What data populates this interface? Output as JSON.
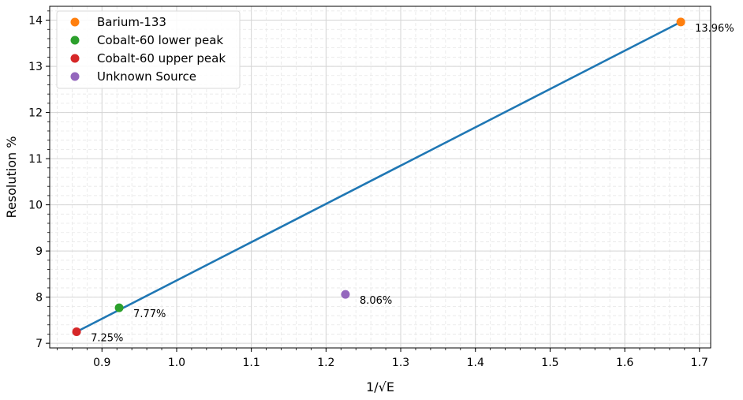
{
  "chart_data": {
    "type": "scatter",
    "xlabel": "1/√E",
    "ylabel": "Resolution %",
    "xlim": [
      0.83,
      1.715
    ],
    "ylim": [
      6.9,
      14.3
    ],
    "x_ticks": [
      0.9,
      1.0,
      1.1,
      1.2,
      1.3,
      1.4,
      1.5,
      1.6,
      1.7
    ],
    "x_tick_labels": [
      "0.9",
      "1.0",
      "1.1",
      "1.2",
      "1.3",
      "1.4",
      "1.5",
      "1.6",
      "1.7"
    ],
    "y_ticks": [
      7,
      8,
      9,
      10,
      11,
      12,
      13,
      14
    ],
    "y_tick_labels": [
      "7",
      "8",
      "9",
      "10",
      "11",
      "12",
      "13",
      "14"
    ],
    "grid": true,
    "minor_grid": true,
    "legend_position": "top-left",
    "fit_line": {
      "color": "#1f77b4",
      "x": [
        0.866,
        1.675
      ],
      "y": [
        7.25,
        13.96
      ]
    },
    "series": [
      {
        "name": "Barium-133",
        "color": "#ff7f0e",
        "x": [
          1.675
        ],
        "y": [
          13.96
        ],
        "label": "13.96%"
      },
      {
        "name": "Cobalt-60 lower peak",
        "color": "#2ca02c",
        "x": [
          0.923
        ],
        "y": [
          7.77
        ],
        "label": "7.77%"
      },
      {
        "name": "Cobalt-60 upper peak",
        "color": "#d62728",
        "x": [
          0.866
        ],
        "y": [
          7.25
        ],
        "label": "7.25%"
      },
      {
        "name": "Unknown Source",
        "color": "#9467bd",
        "x": [
          1.226
        ],
        "y": [
          8.06
        ],
        "label": "8.06%"
      }
    ]
  }
}
